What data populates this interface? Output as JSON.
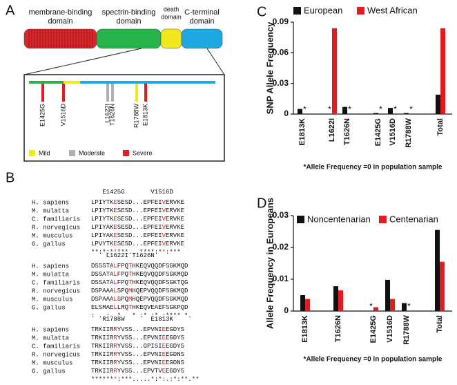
{
  "panels": {
    "A": {
      "letter": "A",
      "domains": [
        {
          "lines": [
            "membrane-binding",
            "domain"
          ],
          "color": "#d9262c"
        },
        {
          "lines": [
            "spectrin-binding",
            "domain"
          ],
          "color": "#27b34a"
        },
        {
          "lines": [
            "death",
            "domain"
          ],
          "color": "#f3e81b"
        },
        {
          "lines": [
            "C-terminal",
            "domain"
          ],
          "color": "#1fa7e3"
        }
      ],
      "mutations": [
        {
          "name": "E1425G",
          "severity": "Severe"
        },
        {
          "name": "V1516D",
          "severity": "Severe"
        },
        {
          "name": "L1622I",
          "severity": "Moderate"
        },
        {
          "name": "T1626N",
          "severity": "Moderate"
        },
        {
          "name": "R1788W",
          "severity": "Mild"
        },
        {
          "name": "E1813K",
          "severity": "Severe"
        }
      ],
      "legend": [
        {
          "label": "Mild",
          "color": "#f3e81b"
        },
        {
          "label": "Moderate",
          "color": "#b0b0b0"
        },
        {
          "label": "Severe",
          "color": "#e8191f"
        }
      ]
    },
    "B": {
      "letter": "B",
      "red_color": "#e8191f",
      "blocks": [
        {
          "header": "   E1425G       V1516D",
          "red_columns": [
            6,
            19
          ],
          "rows": [
            {
              "species": "H. sapiens",
              "sequence": "LPIYTKESESD...EPFEIVERVKE"
            },
            {
              "species": "M. mulatta",
              "sequence": "LPIYTKESESD...EPFEIVERVKE"
            },
            {
              "species": "C. familiaris",
              "sequence": "LPIYTKESESD...EPFEIVERVKE"
            },
            {
              "species": "R. norvegicus",
              "sequence": "LPIYAKESESD...EPFEIVERVKE"
            },
            {
              "species": "M. musculus",
              "sequence": "LPIYAKESESD...EPFEIVERVKE"
            },
            {
              "species": "G. gallus",
              "sequence": "LPVYTKESESD...EPFEIVERVKE"
            }
          ],
          "conservation": "**:*:*****...****:**:***"
        },
        {
          "header": "    L1622I T1626N",
          "red_columns": [
            6,
            10
          ],
          "rows": [
            {
              "species": "H. sapiens",
              "sequence": "DSSSTALFPQTHKEQVQQDFSGKMQD"
            },
            {
              "species": "M. mulatta",
              "sequence": "DSSATALFPQTHKEQVQQDFSGKMQD"
            },
            {
              "species": "C. familiaris",
              "sequence": "DSSATALFPQTHKEQVQQDFSGKTQG"
            },
            {
              "species": "R. norvegicus",
              "sequence": "DSPAAALSPQMHQEPVQQDFSGKMQD"
            },
            {
              "species": "M. musculus",
              "sequence": "DSPAAALSPQMHQEPVQQDFSGKMQD"
            },
            {
              "species": "G. gallus",
              "sequence": "ELSMAELLRQTHKEQVEAEFSGKPQD"
            }
          ],
          "conservation": ": . :  *   * :* :* :**** *."
        },
        {
          "header": "   R1788W       E1813K",
          "red_columns": [
            6,
            19
          ],
          "rows": [
            {
              "species": "H. sapiens",
              "sequence": "TRKIIRRYVSS...EPVNIEEGDYS"
            },
            {
              "species": "M. mulatta",
              "sequence": "TRKIIRRYVSS...EPVNIEEGDYS"
            },
            {
              "species": "C. familiaris",
              "sequence": "TRKIIRRYVSS...GPISIEEGDYS"
            },
            {
              "species": "R. norvegicus",
              "sequence": "TRKIIRRYVSS...EPVNIEEGDNS"
            },
            {
              "species": "M. musculus",
              "sequence": "TRKIIRRYVSS...EPVNIEEGDNS"
            },
            {
              "species": "G. gallus",
              "sequence": "TRKIIRRYVSS...EPVTVEEGDYS"
            }
          ],
          "conservation": "*******:***.....*:*:.:*:**.**"
        }
      ]
    }
  },
  "chart_data": [
    {
      "type": "bar",
      "letter": "C",
      "ylabel": "SNP Allele Frequency",
      "categories": [
        "E1813K",
        "L1622I",
        "T1626N",
        "E1425G",
        "V1516D",
        "R1788W",
        "Total"
      ],
      "series": [
        {
          "name": "European",
          "color": "#111111",
          "values": [
            0.005,
            0,
            0.007,
            0.001,
            0.006,
            0.001,
            0.019
          ]
        },
        {
          "name": "West African",
          "color": "#e8191f",
          "values": [
            0,
            0.084,
            0,
            0,
            0,
            0,
            0.084
          ]
        }
      ],
      "ylim": [
        0,
        0.09
      ],
      "yticks": [
        0,
        0.03,
        0.06,
        0.09
      ],
      "zero_marker": "*",
      "note": "*Allele Frequency =0 in population sample"
    },
    {
      "type": "bar",
      "letter": "D",
      "ylabel": "Allele Frequency in Europeans",
      "categories": [
        "E1813K",
        "T1626N",
        "E1425G",
        "V1516D",
        "R1788W",
        "Total"
      ],
      "series": [
        {
          "name": "Noncentenarian",
          "color": "#111111",
          "values": [
            0.005,
            0.0078,
            0,
            0.0098,
            0.0025,
            0.0255
          ]
        },
        {
          "name": "Centenarian",
          "color": "#e8191f",
          "values": [
            0.0038,
            0.0065,
            0.0012,
            0.0038,
            0,
            0.0155
          ]
        }
      ],
      "ylim": [
        0,
        0.03
      ],
      "yticks": [
        0,
        0.01,
        0.02,
        0.03
      ],
      "zero_marker": "*",
      "note": "*Allele Frequency =0 in population sample"
    }
  ]
}
